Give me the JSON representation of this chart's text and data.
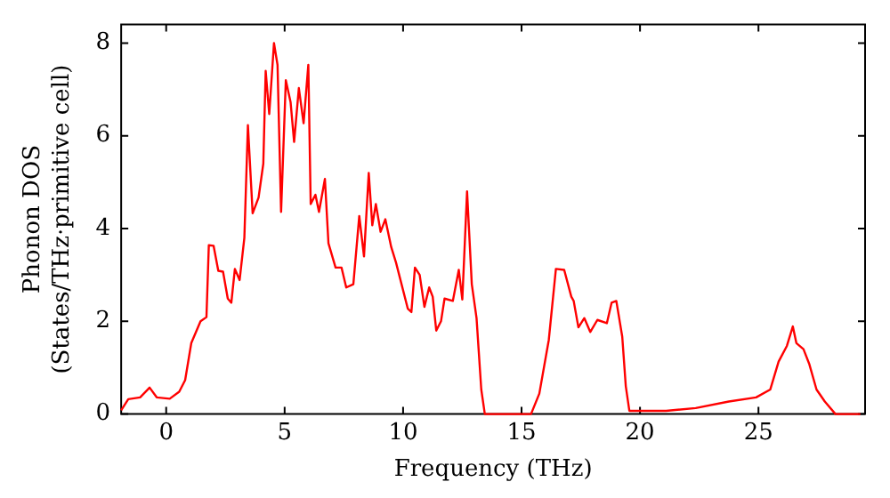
{
  "chart_data": {
    "type": "line",
    "xlabel": "Frequency (THz)",
    "ylabel": "Phonon DOS\n(States/THz·primitive cell)",
    "xlim": [
      -1.9,
      29.5
    ],
    "ylim": [
      0,
      8.4
    ],
    "xticks": [
      0,
      5,
      10,
      15,
      20,
      25
    ],
    "yticks": [
      0,
      2,
      4,
      6,
      8
    ],
    "legend": false,
    "marker": "none",
    "line_style": "solid",
    "series": [
      {
        "color": "#ff0000",
        "x": [
          -1.9,
          -1.6,
          -1.1,
          -0.7,
          -0.4,
          0.15,
          0.55,
          0.8,
          1.06,
          1.45,
          1.7,
          1.8,
          2.0,
          2.2,
          2.4,
          2.6,
          2.75,
          2.9,
          3.1,
          3.3,
          3.45,
          3.65,
          3.9,
          4.1,
          4.2,
          4.35,
          4.55,
          4.7,
          4.85,
          5.05,
          5.25,
          5.4,
          5.6,
          5.8,
          6.0,
          6.1,
          6.3,
          6.45,
          6.7,
          6.85,
          7.15,
          7.4,
          7.6,
          7.9,
          8.15,
          8.35,
          8.55,
          8.7,
          8.85,
          9.05,
          9.25,
          9.5,
          9.7,
          10.2,
          10.35,
          10.5,
          10.7,
          10.9,
          11.1,
          11.25,
          11.4,
          11.6,
          11.75,
          12.1,
          12.35,
          12.5,
          12.7,
          12.9,
          13.1,
          13.3,
          13.45,
          15.4,
          15.75,
          16.15,
          16.45,
          16.8,
          17.1,
          17.2,
          17.4,
          17.65,
          17.9,
          18.2,
          18.6,
          18.8,
          19.0,
          19.25,
          19.4,
          19.55,
          21.1,
          22.35,
          23.75,
          24.9,
          25.5,
          25.85,
          26.2,
          26.45,
          26.6,
          26.9,
          27.15,
          27.45,
          27.8,
          28.25,
          29.3
        ],
        "values": [
          0.08,
          0.32,
          0.36,
          0.57,
          0.36,
          0.33,
          0.48,
          0.73,
          1.53,
          2.0,
          2.09,
          3.64,
          3.63,
          3.09,
          3.07,
          2.49,
          2.4,
          3.13,
          2.89,
          3.8,
          6.23,
          4.33,
          4.67,
          5.4,
          7.4,
          6.47,
          8.0,
          7.53,
          4.36,
          7.2,
          6.73,
          5.87,
          7.03,
          6.27,
          7.53,
          4.53,
          4.73,
          4.36,
          5.07,
          3.68,
          3.16,
          3.16,
          2.73,
          2.8,
          4.27,
          3.4,
          5.2,
          4.07,
          4.53,
          3.93,
          4.2,
          3.6,
          3.27,
          2.27,
          2.2,
          3.16,
          3.0,
          2.31,
          2.73,
          2.53,
          1.8,
          2.0,
          2.49,
          2.44,
          3.11,
          2.47,
          4.8,
          2.8,
          2.07,
          0.53,
          0,
          0,
          0.44,
          1.6,
          3.13,
          3.11,
          2.53,
          2.44,
          1.87,
          2.07,
          1.77,
          2.03,
          1.96,
          2.4,
          2.44,
          1.67,
          0.6,
          0.07,
          0.07,
          0.13,
          0.27,
          0.36,
          0.53,
          1.13,
          1.47,
          1.89,
          1.53,
          1.4,
          1.07,
          0.53,
          0.27,
          0,
          0
        ]
      }
    ]
  }
}
